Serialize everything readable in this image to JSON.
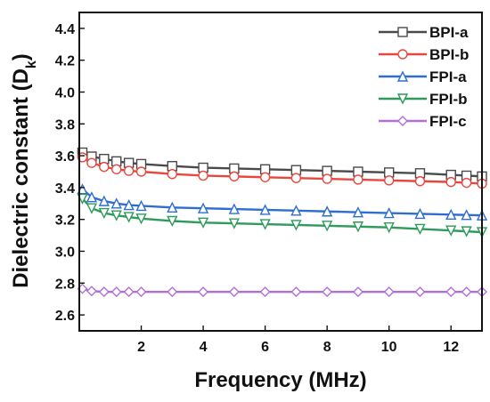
{
  "chart_data": {
    "type": "line",
    "xlabel": "Frequency (MHz)",
    "ylabel": {
      "main": "Dielectric constant (D",
      "subscript": "k",
      "close": ")"
    },
    "xlim": [
      0,
      13
    ],
    "ylim": [
      2.5,
      4.5
    ],
    "xticks": [
      2,
      4,
      6,
      8,
      10,
      12
    ],
    "xtick_labels": [
      "2",
      "4",
      "6",
      "8",
      "10",
      "12"
    ],
    "yticks": [
      2.6,
      2.8,
      3.0,
      3.2,
      3.4,
      3.6,
      3.8,
      4.0,
      4.2,
      4.4
    ],
    "ytick_labels": [
      "2.6",
      "2.8",
      "3.0",
      "3.2",
      "3.4",
      "3.6",
      "3.8",
      "4.0",
      "4.2",
      "4.4"
    ],
    "grid": false,
    "legend_position": "top-right",
    "series": [
      {
        "name": "BPI-a",
        "color": "#4a4a4a",
        "marker": "square",
        "x": [
          0.1,
          0.4,
          0.8,
          1.2,
          1.6,
          2,
          3,
          4,
          5,
          6,
          7,
          8,
          9,
          10,
          11,
          12,
          12.5,
          13
        ],
        "y": [
          3.62,
          3.595,
          3.58,
          3.565,
          3.555,
          3.548,
          3.535,
          3.525,
          3.52,
          3.515,
          3.51,
          3.505,
          3.5,
          3.495,
          3.49,
          3.48,
          3.475,
          3.47
        ]
      },
      {
        "name": "BPI-b",
        "color": "#e8473f",
        "marker": "circle",
        "x": [
          0.1,
          0.4,
          0.8,
          1.2,
          1.6,
          2,
          3,
          4,
          5,
          6,
          7,
          8,
          9,
          10,
          11,
          12,
          12.5,
          13
        ],
        "y": [
          3.59,
          3.555,
          3.53,
          3.515,
          3.505,
          3.5,
          3.485,
          3.475,
          3.47,
          3.465,
          3.46,
          3.455,
          3.45,
          3.445,
          3.44,
          3.435,
          3.43,
          3.425
        ]
      },
      {
        "name": "FPI-a",
        "color": "#2f6ed1",
        "marker": "triangle-up",
        "x": [
          0.1,
          0.4,
          0.8,
          1.2,
          1.6,
          2,
          3,
          4,
          5,
          6,
          7,
          8,
          9,
          10,
          11,
          12,
          12.5,
          13
        ],
        "y": [
          3.39,
          3.34,
          3.315,
          3.3,
          3.29,
          3.285,
          3.275,
          3.27,
          3.265,
          3.26,
          3.255,
          3.25,
          3.245,
          3.24,
          3.235,
          3.23,
          3.228,
          3.225
        ]
      },
      {
        "name": "FPI-b",
        "color": "#2e9a5b",
        "marker": "triangle-down",
        "x": [
          0.1,
          0.4,
          0.8,
          1.2,
          1.6,
          2,
          3,
          4,
          5,
          6,
          7,
          8,
          9,
          10,
          11,
          12,
          12.5,
          13
        ],
        "y": [
          3.33,
          3.27,
          3.24,
          3.225,
          3.215,
          3.205,
          3.19,
          3.18,
          3.175,
          3.17,
          3.165,
          3.16,
          3.155,
          3.15,
          3.14,
          3.13,
          3.125,
          3.12
        ]
      },
      {
        "name": "FPI-c",
        "color": "#b070d8",
        "marker": "diamond",
        "x": [
          0.1,
          0.4,
          0.8,
          1.2,
          1.6,
          2,
          3,
          4,
          5,
          6,
          7,
          8,
          9,
          10,
          11,
          12,
          12.5,
          13
        ],
        "y": [
          2.765,
          2.75,
          2.745,
          2.745,
          2.745,
          2.745,
          2.745,
          2.745,
          2.745,
          2.745,
          2.745,
          2.745,
          2.745,
          2.745,
          2.745,
          2.745,
          2.745,
          2.745
        ]
      }
    ]
  }
}
